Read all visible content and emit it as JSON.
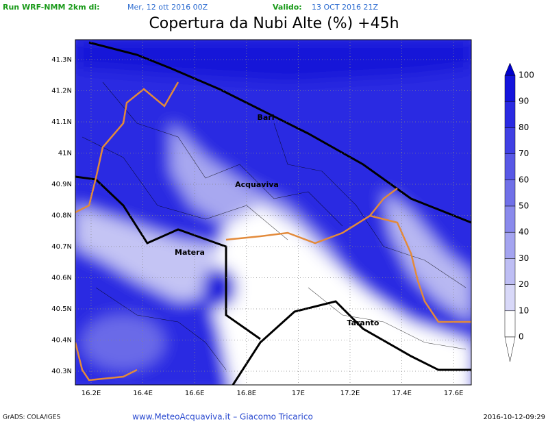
{
  "header": {
    "run_label": "Run WRF-NMM 2km di:",
    "run_date": "Mer, 12 ott 2016 00Z",
    "valid_label": "Valido:",
    "valid_date": "13 OCT 2016 21Z"
  },
  "title": "Copertura da Nubi Alte (%) +45h",
  "map": {
    "lon_ticks": [
      "16.2E",
      "16.4E",
      "16.6E",
      "16.8E",
      "17E",
      "17.2E",
      "17.4E",
      "17.6E"
    ],
    "lat_ticks": [
      "41.3N",
      "41.2N",
      "41.1N",
      "41N",
      "40.9N",
      "40.8N",
      "40.7N",
      "40.6N",
      "40.5N",
      "40.4N",
      "40.3N"
    ],
    "cities": [
      "Bari",
      "Acquaviva",
      "Matera",
      "Taranto"
    ]
  },
  "colorbar": {
    "ticks": [
      100,
      90,
      80,
      70,
      60,
      50,
      40,
      30,
      20,
      10,
      0
    ]
  },
  "footer": {
    "left": "GrADS: COLA/IGES",
    "center": "www.MeteoAcquaviva.it  –  Giacomo Tricarico",
    "right": "2016-10-12-09:29"
  }
}
